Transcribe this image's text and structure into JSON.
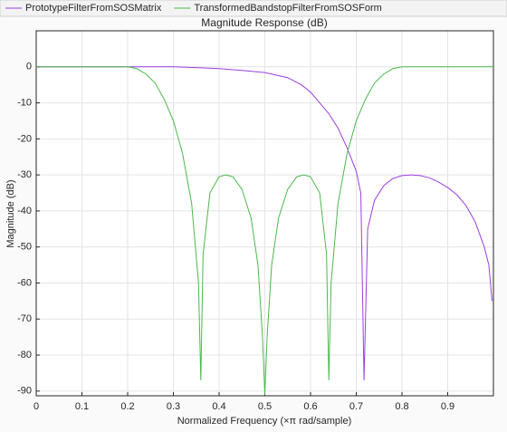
{
  "chart_data": {
    "type": "line",
    "title": "Magnitude Response (dB)",
    "xlabel": "Normalized Frequency (×π rad/sample)",
    "ylabel": "Magnitude (dB)",
    "xlim": [
      0,
      1
    ],
    "ylim": [
      -91.3,
      10
    ],
    "xticks": [
      0,
      0.1,
      0.2,
      0.3,
      0.4,
      0.5,
      0.6,
      0.7,
      0.8,
      0.9
    ],
    "yticks": [
      0,
      -10,
      -20,
      -30,
      -40,
      -50,
      -60,
      -70,
      -80,
      -90
    ],
    "grid": true,
    "series": [
      {
        "name": "PrototypeFilterFromSOSMatrix",
        "color": "#9b3fe0",
        "x": [
          0,
          0.1,
          0.2,
          0.3,
          0.35,
          0.4,
          0.45,
          0.5,
          0.55,
          0.58,
          0.6,
          0.62,
          0.64,
          0.66,
          0.68,
          0.7,
          0.71,
          0.717,
          0.725,
          0.74,
          0.76,
          0.78,
          0.8,
          0.82,
          0.84,
          0.86,
          0.88,
          0.9,
          0.92,
          0.94,
          0.96,
          0.98,
          0.99,
          0.997
        ],
        "values": [
          0,
          0,
          0,
          0,
          -0.2,
          -0.5,
          -1,
          -1.6,
          -3,
          -5,
          -7,
          -10,
          -13,
          -17,
          -22.5,
          -29,
          -35,
          -87,
          -45,
          -37,
          -33,
          -31,
          -30.2,
          -30,
          -30.2,
          -30.8,
          -32,
          -33.5,
          -35.5,
          -38.5,
          -43,
          -50,
          -55,
          -65
        ]
      },
      {
        "name": "TransformedBandstopFilterFromSOSForm",
        "color": "#4cb84c",
        "x": [
          0,
          0.1,
          0.2,
          0.22,
          0.24,
          0.26,
          0.28,
          0.3,
          0.32,
          0.34,
          0.355,
          0.36,
          0.365,
          0.38,
          0.4,
          0.415,
          0.43,
          0.45,
          0.47,
          0.485,
          0.495,
          0.5,
          0.505,
          0.515,
          0.53,
          0.55,
          0.57,
          0.585,
          0.6,
          0.62,
          0.635,
          0.64,
          0.645,
          0.66,
          0.68,
          0.7,
          0.72,
          0.74,
          0.76,
          0.78,
          0.8,
          0.9,
          1
        ],
        "values": [
          0,
          0,
          0,
          -0.5,
          -2,
          -4.5,
          -9,
          -15,
          -24,
          -38,
          -60,
          -87,
          -52,
          -35,
          -30.5,
          -30,
          -30.5,
          -34,
          -42,
          -55,
          -75,
          -91,
          -75,
          -55,
          -42,
          -34,
          -30.5,
          -30,
          -30.5,
          -35,
          -52,
          -87,
          -60,
          -38,
          -24,
          -15,
          -9,
          -4.5,
          -2,
          -0.5,
          0,
          0,
          0
        ]
      }
    ]
  }
}
